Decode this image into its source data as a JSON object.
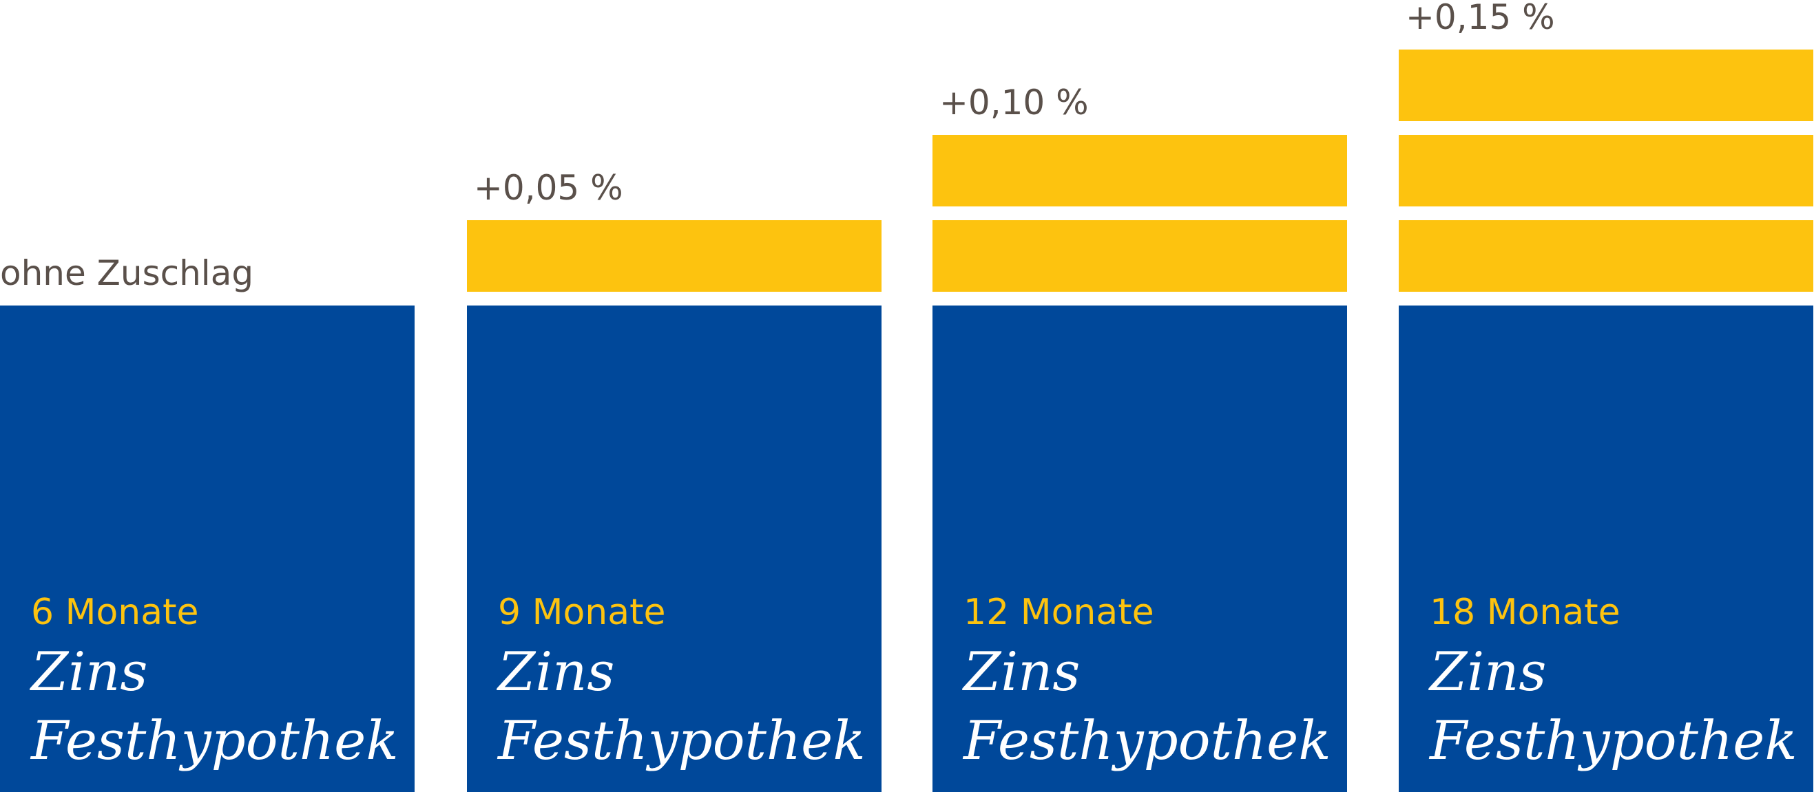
{
  "chart_data": {
    "type": "bar",
    "categories": [
      "6 Monate",
      "9 Monate",
      "12 Monate",
      "18 Monate"
    ],
    "series": [
      {
        "values": [
          0,
          0.05,
          0.1,
          0.15
        ]
      }
    ],
    "value_labels": [
      "ohne Zuschlag",
      "+0,05 %",
      "+0,10 %",
      "+0,15 %"
    ],
    "bar_text_line1": "Zins",
    "bar_text_line2": "Festhypothek",
    "segment_step": 0.05,
    "colors": {
      "base": "#00489a",
      "surcharge": "#fdc30f",
      "term_text": "#fdc30f",
      "product_text": "#ffffff",
      "label_text": "#5a504a"
    }
  }
}
